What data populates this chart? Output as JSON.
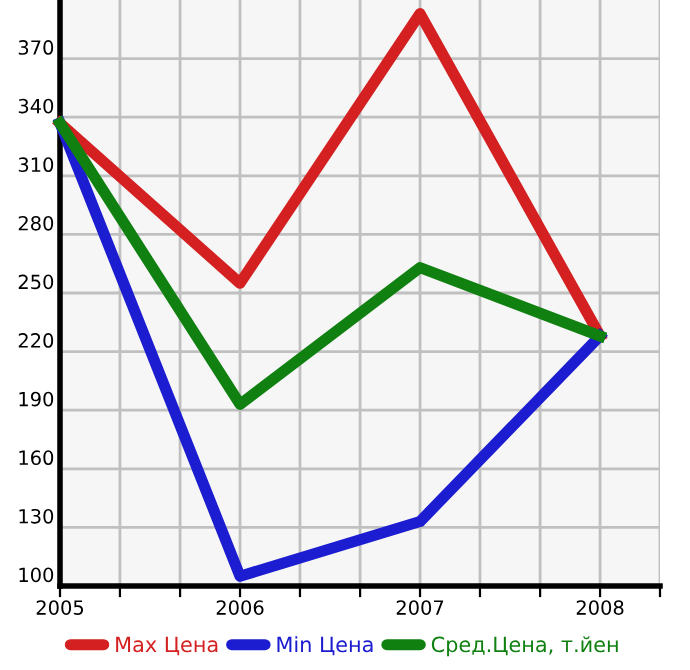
{
  "chart_data": {
    "type": "line",
    "x": [
      2005,
      2006,
      2007,
      2008
    ],
    "series": [
      {
        "name": "Max Цена",
        "color": "#d42020",
        "values": [
          337,
          255,
          393,
          228
        ]
      },
      {
        "name": "Min Цена",
        "color": "#1c1cd0",
        "values": [
          337,
          105,
          133,
          228
        ]
      },
      {
        "name": "Сред.Цена, т.йен",
        "color": "#108010",
        "values": [
          337,
          193,
          263,
          228
        ]
      }
    ],
    "xlim": [
      2005,
      2008.333
    ],
    "xticks": [
      2005,
      {
        "value": 2005.333,
        "label": null
      },
      {
        "value": 2005.667,
        "label": null
      },
      2006,
      {
        "value": 2006.333,
        "label": null
      },
      {
        "value": 2006.667,
        "label": null
      },
      2007,
      {
        "value": 2007.333,
        "label": null
      },
      {
        "value": 2007.667,
        "label": null
      },
      2008,
      {
        "value": 2008.333,
        "label": null
      }
    ],
    "ylim": [
      100,
      400
    ],
    "yticks": [
      100,
      130,
      160,
      190,
      220,
      250,
      280,
      310,
      340,
      370
    ],
    "grid": true,
    "legend": "bottom",
    "marker": "none",
    "line_style": "solid"
  }
}
